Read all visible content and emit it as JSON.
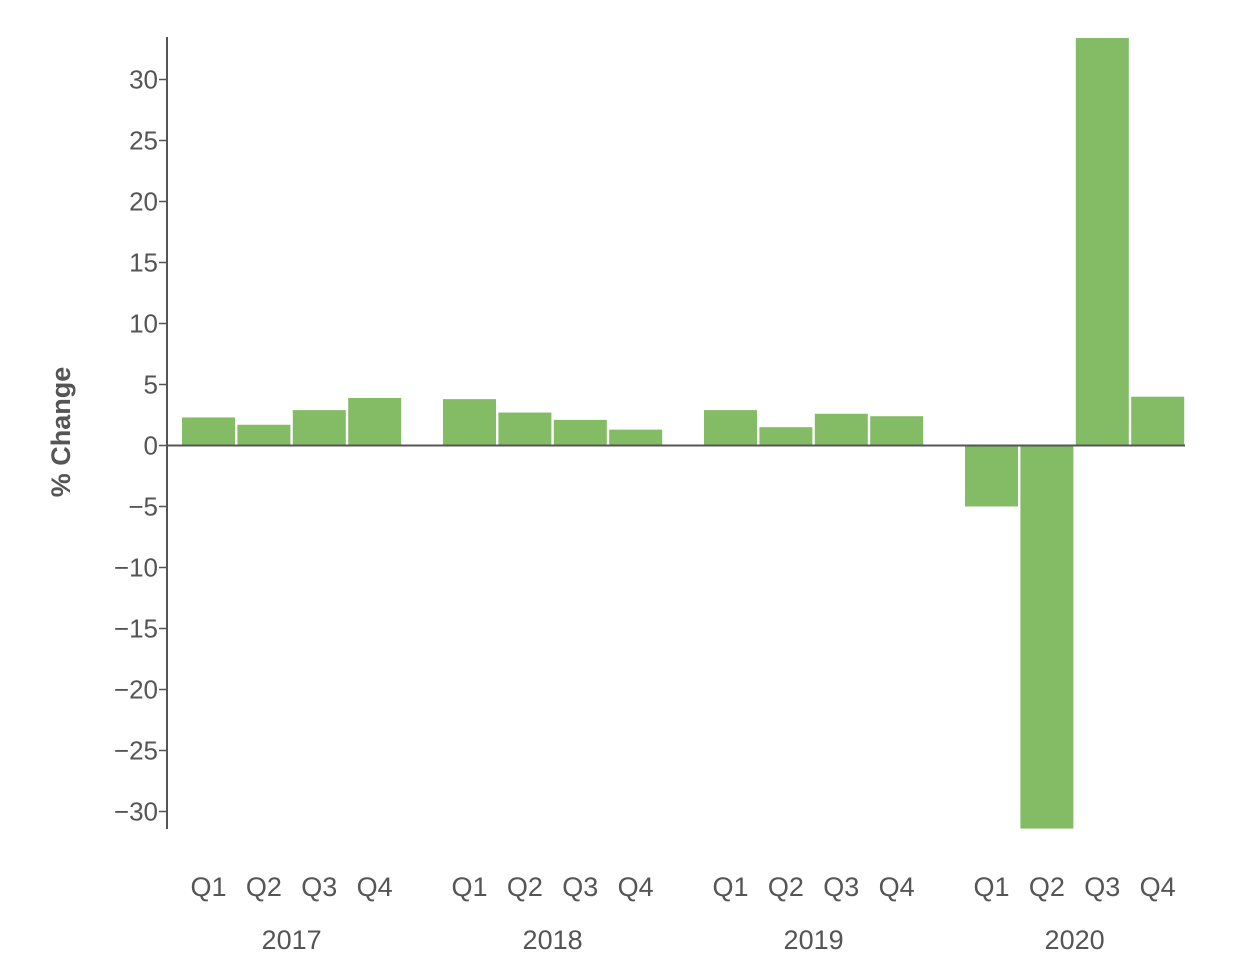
{
  "chart_data": {
    "type": "bar",
    "title": "",
    "xlabel": "",
    "ylabel": "% Change",
    "ylim": [
      -31.5,
      33.5
    ],
    "yticks": [
      30,
      25,
      20,
      15,
      10,
      5,
      0,
      -5,
      -10,
      -15,
      -20,
      -25,
      -30
    ],
    "ytick_labels": [
      "30",
      "25",
      "20",
      "15",
      "10",
      "5",
      "0",
      "−5",
      "−10",
      "−15",
      "−20",
      "−25",
      "−30"
    ],
    "grid": false,
    "legend": "none",
    "bar_color": "#84bc66",
    "axis_color": "#555555",
    "groups": [
      {
        "label": "2017",
        "categories": [
          "Q1",
          "Q2",
          "Q3",
          "Q4"
        ],
        "values": [
          2.3,
          1.7,
          2.9,
          3.9
        ]
      },
      {
        "label": "2018",
        "categories": [
          "Q1",
          "Q2",
          "Q3",
          "Q4"
        ],
        "values": [
          3.8,
          2.7,
          2.1,
          1.3
        ]
      },
      {
        "label": "2019",
        "categories": [
          "Q1",
          "Q2",
          "Q3",
          "Q4"
        ],
        "values": [
          2.9,
          1.5,
          2.6,
          2.4
        ]
      },
      {
        "label": "2020",
        "categories": [
          "Q1",
          "Q2",
          "Q3",
          "Q4"
        ],
        "values": [
          -5.0,
          -31.4,
          33.4,
          4.0
        ]
      }
    ]
  }
}
